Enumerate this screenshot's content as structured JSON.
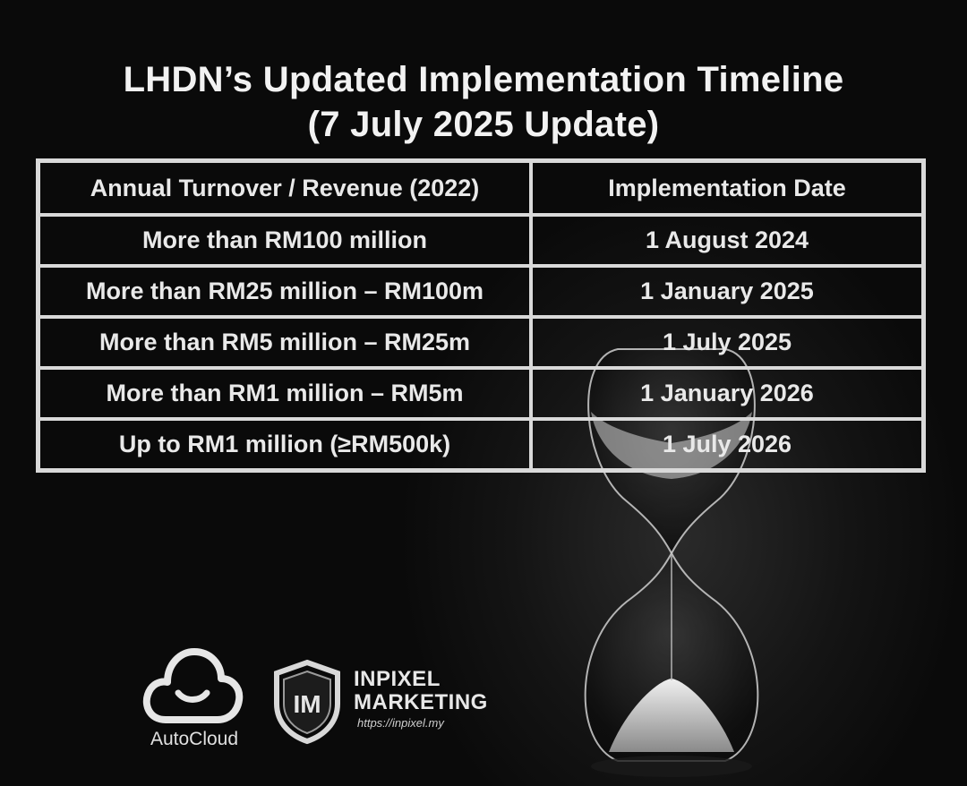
{
  "title": {
    "line1": "LHDN’s Updated Implementation Timeline",
    "line2": "(7 July 2025 Update)"
  },
  "table": {
    "headers": [
      "Annual Turnover / Revenue (2022)",
      "Implementation Date"
    ],
    "rows": [
      [
        "More than RM100 million",
        "1 August 2024"
      ],
      [
        "More than RM25 million – RM100m",
        "1 January 2025"
      ],
      [
        "More than RM5 million – RM25m",
        "1 July 2025"
      ],
      [
        "More than RM1 million – RM5m",
        "1 January 2026"
      ],
      [
        "Up to RM1 million (≥RM500k)",
        "1 July 2026"
      ]
    ]
  },
  "logos": {
    "autocloud": {
      "name": "AutoCloud",
      "icon": "cloud-smile-icon"
    },
    "inpixel": {
      "monogram": "IM",
      "line1": "INPIXEL",
      "line2": "MARKETING",
      "url": "https://inpixel.my",
      "icon": "shield-icon"
    }
  },
  "background": {
    "image": "hourglass-icon"
  }
}
